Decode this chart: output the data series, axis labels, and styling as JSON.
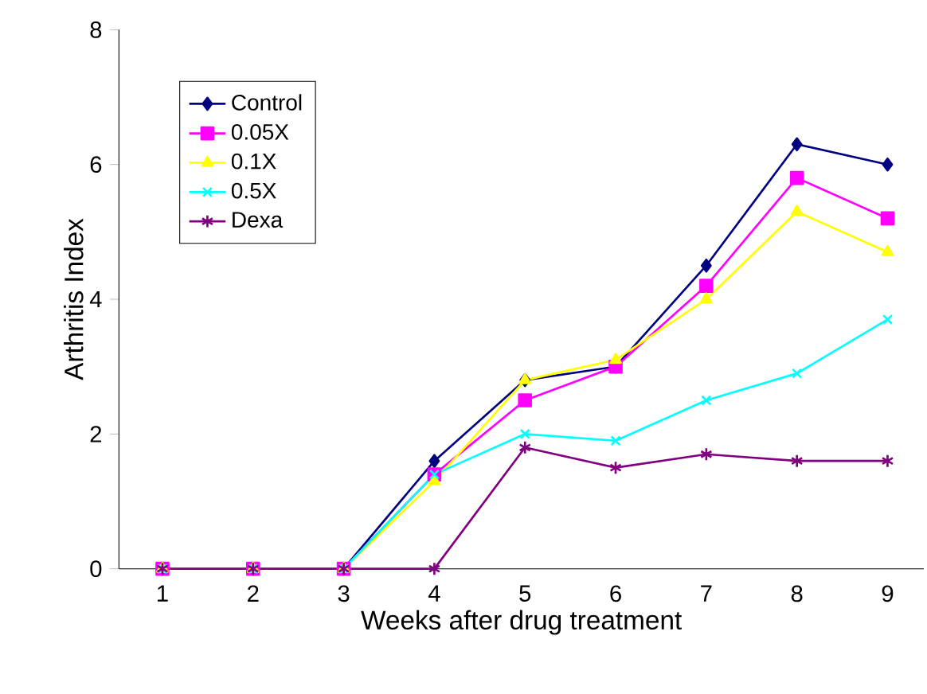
{
  "chart_data": {
    "type": "line",
    "xlabel": "Weeks after drug treatment",
    "ylabel": "Arthritis Index",
    "categories": [
      "1",
      "2",
      "3",
      "4",
      "5",
      "6",
      "7",
      "8",
      "9"
    ],
    "series": [
      {
        "name": "Control",
        "color": "#000080",
        "marker": "diamond",
        "values": [
          0,
          0,
          0,
          1.6,
          2.8,
          3.0,
          4.5,
          6.3,
          6.0
        ]
      },
      {
        "name": "0.05X",
        "color": "#ff00ff",
        "marker": "square",
        "values": [
          0,
          0,
          0,
          1.4,
          2.5,
          3.0,
          4.2,
          5.8,
          5.2
        ]
      },
      {
        "name": "0.1X",
        "color": "#ffff00",
        "marker": "triangle",
        "values": [
          0,
          0,
          0,
          1.3,
          2.8,
          3.1,
          4.0,
          5.3,
          4.7
        ]
      },
      {
        "name": "0.5X",
        "color": "#00ffff",
        "marker": "cross",
        "values": [
          0,
          0,
          0,
          1.4,
          2.0,
          1.9,
          2.5,
          2.9,
          3.7
        ]
      },
      {
        "name": "Dexa",
        "color": "#800080",
        "marker": "cross",
        "values": [
          0,
          0,
          0,
          0,
          1.8,
          1.5,
          1.7,
          1.6,
          1.6
        ]
      }
    ],
    "ylim": [
      0,
      8
    ],
    "yticks": [
      0,
      2,
      4,
      6,
      8
    ],
    "legend": "top left",
    "grid": false,
    "line_style": "solid"
  }
}
